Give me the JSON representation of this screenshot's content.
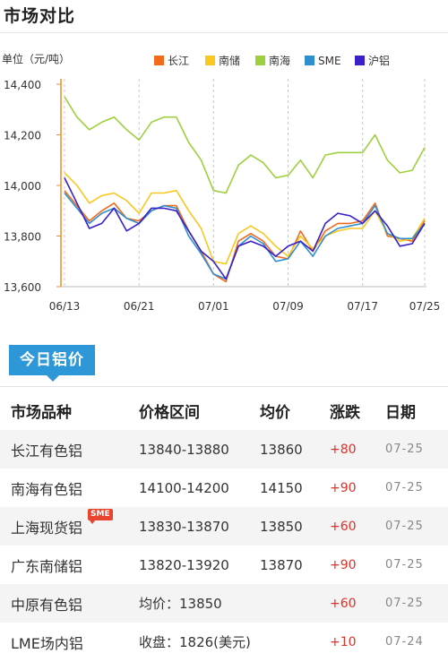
{
  "page_title": "市场对比",
  "tabs": {
    "active": "今日铝价"
  },
  "table": {
    "headers": [
      "市场品种",
      "价格区间",
      "均价",
      "涨跌",
      "日期"
    ],
    "rows": [
      {
        "market": "长江有色铝",
        "range": "13840-13880",
        "avg": "13860",
        "change": "+80",
        "date": "07-25"
      },
      {
        "market": "南海有色铝",
        "range": "14100-14200",
        "avg": "14150",
        "change": "+90",
        "date": "07-25"
      },
      {
        "market": "上海现货铝",
        "badge": "SME",
        "range": "13830-13870",
        "avg": "13850",
        "change": "+60",
        "date": "07-25"
      },
      {
        "market": "广东南储铝",
        "range": "13820-13920",
        "avg": "13870",
        "change": "+90",
        "date": "07-25"
      },
      {
        "market": "中原有色铝",
        "range": "均价：13850",
        "avg": "",
        "change": "+60",
        "date": "07-25"
      },
      {
        "market": "LME场内铝",
        "range": "收盘：1826(美元)",
        "avg": "",
        "change": "+10",
        "date": "07-24"
      }
    ]
  },
  "chart_data": {
    "type": "line",
    "unit_label": "单位（元/吨）",
    "x_tick_labels": [
      "06/13",
      "06/21",
      "07/01",
      "07/09",
      "07/17",
      "07/25"
    ],
    "ylim": [
      13600,
      14400
    ],
    "y_ticks": [
      "13,600",
      "13,800",
      "14,000",
      "14,200",
      "14,400"
    ],
    "grid": "dashed vertical",
    "legend_position": "top",
    "series": [
      {
        "name": "长江",
        "color": "#f26b1d",
        "values": [
          13980,
          13920,
          13860,
          13900,
          13930,
          13870,
          13860,
          13900,
          13920,
          13920,
          13820,
          13740,
          13650,
          13620,
          13780,
          13810,
          13780,
          13720,
          13710,
          13820,
          13740,
          13820,
          13850,
          13850,
          13860,
          13930,
          13800,
          13790,
          13780,
          13860
        ]
      },
      {
        "name": "南储",
        "color": "#f8c820",
        "values": [
          14050,
          14000,
          13930,
          13960,
          13970,
          13940,
          13890,
          13970,
          13970,
          13980,
          13900,
          13830,
          13700,
          13690,
          13810,
          13840,
          13810,
          13760,
          13720,
          13800,
          13750,
          13800,
          13820,
          13830,
          13830,
          13900,
          13810,
          13780,
          13790,
          13870
        ]
      },
      {
        "name": "南海",
        "color": "#9ecf3e",
        "values": [
          14350,
          14270,
          14220,
          14250,
          14270,
          14220,
          14180,
          14250,
          14270,
          14270,
          14170,
          14100,
          13980,
          13970,
          14080,
          14120,
          14090,
          14030,
          14040,
          14100,
          14030,
          14120,
          14130,
          14130,
          14130,
          14200,
          14100,
          14050,
          14060,
          14150
        ]
      },
      {
        "name": "SME",
        "color": "#2f8fce",
        "values": [
          13970,
          13910,
          13850,
          13890,
          13910,
          13870,
          13850,
          13900,
          13920,
          13910,
          13800,
          13730,
          13650,
          13630,
          13760,
          13800,
          13770,
          13700,
          13710,
          13780,
          13720,
          13800,
          13830,
          13840,
          13850,
          13920,
          13810,
          13790,
          13790,
          13850
        ]
      },
      {
        "name": "沪铝",
        "color": "#3a20c8",
        "values": [
          14030,
          13930,
          13830,
          13850,
          13910,
          13820,
          13850,
          13910,
          13910,
          13900,
          13820,
          13740,
          13700,
          13630,
          13760,
          13780,
          13760,
          13720,
          13760,
          13780,
          13740,
          13850,
          13890,
          13880,
          13850,
          13900,
          13840,
          13760,
          13770,
          13850
        ]
      }
    ]
  }
}
